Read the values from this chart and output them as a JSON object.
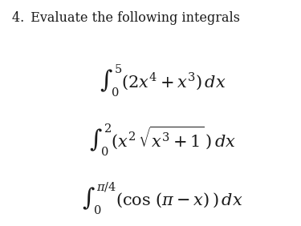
{
  "background_color": "#ffffff",
  "text_color": "#1a1a1a",
  "number_label": "4. ",
  "title_text": "Evaluate the following integrals",
  "integral1": "$\\int_0^5(2x^4 + x^3)\\,dx$",
  "integral2": "$\\int_0^2(x^2\\,\\sqrt{x^3+1}\\,)\\,dx$",
  "integral3": "$\\int_0^{\\pi/4}(\\cos\\,(\\pi - x)\\,)\\,dx$",
  "title_fontsize": 11.5,
  "integral_fontsize": 15,
  "fig_width": 3.75,
  "fig_height": 2.82,
  "dpi": 100
}
